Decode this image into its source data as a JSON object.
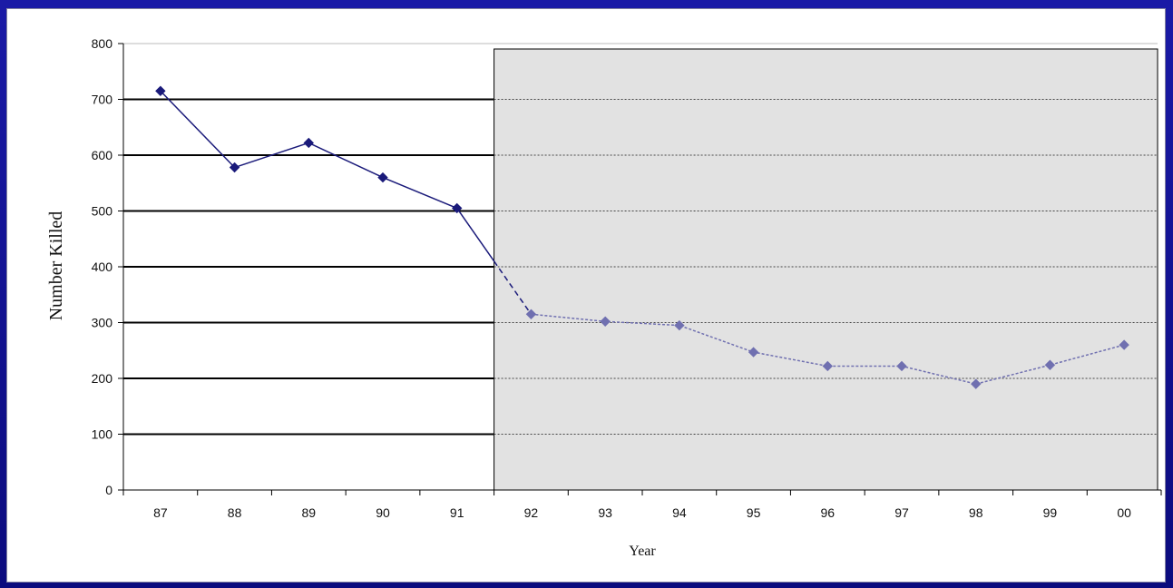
{
  "colors": {
    "frame": "#0d0d7a",
    "series": "#1a1a7a",
    "series_dashed": "#7070b0",
    "shaded_region": "#e2e2e2",
    "gridline": "#000000"
  },
  "chart_data": {
    "type": "line",
    "title": "",
    "xlabel": "Year",
    "ylabel": "Number Killed",
    "ylim": [
      0,
      800
    ],
    "yticks": [
      0,
      100,
      200,
      300,
      400,
      500,
      600,
      700,
      800
    ],
    "categories": [
      "87",
      "88",
      "89",
      "90",
      "91",
      "92",
      "93",
      "94",
      "95",
      "96",
      "97",
      "98",
      "99",
      "00"
    ],
    "values": [
      715,
      578,
      622,
      560,
      505,
      315,
      302,
      295,
      247,
      222,
      222,
      190,
      224,
      260
    ],
    "solid_until_index": 4,
    "shaded_from_category": "92",
    "grid": true,
    "legend": "none"
  }
}
